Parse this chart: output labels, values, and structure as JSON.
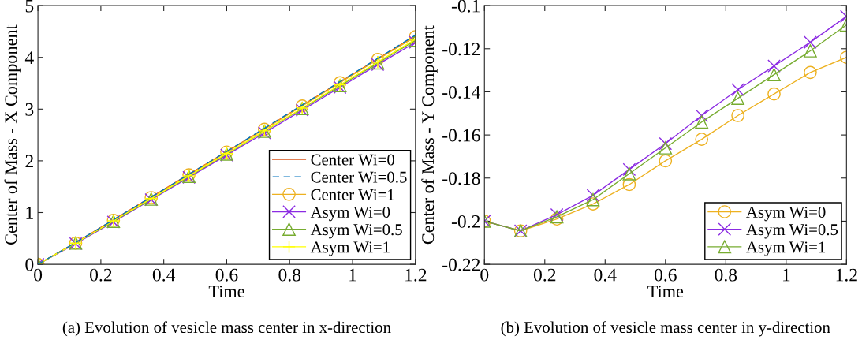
{
  "chart_data": [
    {
      "type": "line",
      "xlabel": "Time",
      "ylabel": "Center of Mass - X Component",
      "annotations": [
        "(a) Evolution of vesicle mass center in x-direction"
      ],
      "x": [
        0,
        0.12,
        0.24,
        0.36,
        0.48,
        0.6,
        0.72,
        0.84,
        0.96,
        1.08,
        1.2
      ],
      "xlim": [
        0,
        1.2
      ],
      "xticks": [
        0,
        0.2,
        0.4,
        0.6,
        0.8,
        1,
        1.2
      ],
      "ylim": [
        0,
        5
      ],
      "yticks": [
        0,
        1,
        2,
        3,
        4,
        5
      ],
      "grid": false,
      "legend": "bottom right",
      "series": [
        {
          "name": "Center Wi=0",
          "color": "#d95319",
          "marker": "none",
          "line_style": "solid",
          "values": [
            0,
            0.42,
            0.86,
            1.3,
            1.74,
            2.18,
            2.62,
            3.07,
            3.52,
            3.97,
            4.42
          ]
        },
        {
          "name": "Center Wi=0.5",
          "color": "#0072bd",
          "marker": "none",
          "line_style": "dashed",
          "values": [
            0,
            0.42,
            0.86,
            1.3,
            1.74,
            2.18,
            2.63,
            3.08,
            3.53,
            3.98,
            4.43
          ]
        },
        {
          "name": "Center Wi=1",
          "color": "#edb120",
          "marker": "circle",
          "line_style": "solid",
          "values": [
            0,
            0.41,
            0.85,
            1.29,
            1.73,
            2.17,
            2.61,
            3.06,
            3.51,
            3.96,
            4.4
          ]
        },
        {
          "name": "Asym Wi=0",
          "color": "#8b2be2",
          "marker": "cross",
          "line_style": "solid",
          "values": [
            0,
            0.4,
            0.82,
            1.25,
            1.68,
            2.11,
            2.54,
            2.98,
            3.42,
            3.86,
            4.29
          ]
        },
        {
          "name": "Asym Wi=0.5",
          "color": "#77ac30",
          "marker": "triangle",
          "line_style": "solid",
          "values": [
            0,
            0.41,
            0.83,
            1.26,
            1.7,
            2.13,
            2.57,
            3.01,
            3.45,
            3.89,
            4.33
          ]
        },
        {
          "name": "Asym Wi=1",
          "color": "#ffff00",
          "marker": "plus",
          "line_style": "solid",
          "values": [
            0,
            0.41,
            0.84,
            1.27,
            1.71,
            2.14,
            2.58,
            3.02,
            3.47,
            3.91,
            4.35
          ]
        }
      ]
    },
    {
      "type": "line",
      "xlabel": "Time",
      "ylabel": "Center of Mass - Y Component",
      "annotations": [
        "(b) Evolution of vesicle mass center in y-direction"
      ],
      "x": [
        0,
        0.12,
        0.24,
        0.36,
        0.48,
        0.6,
        0.72,
        0.84,
        0.96,
        1.08,
        1.2
      ],
      "xlim": [
        0,
        1.2
      ],
      "xticks": [
        0,
        0.2,
        0.4,
        0.6,
        0.8,
        1,
        1.2
      ],
      "ylim": [
        -0.22,
        -0.1
      ],
      "yticks": [
        -0.22,
        -0.2,
        -0.18,
        -0.16,
        -0.14,
        -0.12,
        -0.1
      ],
      "grid": false,
      "legend": "bottom right",
      "series": [
        {
          "name": "Asym Wi=0",
          "color": "#edb120",
          "marker": "circle",
          "line_style": "solid",
          "values": [
            -0.2,
            -0.2045,
            -0.199,
            -0.192,
            -0.183,
            -0.172,
            -0.162,
            -0.151,
            -0.141,
            -0.131,
            -0.124
          ]
        },
        {
          "name": "Asym Wi=0.5",
          "color": "#8b2be2",
          "marker": "cross",
          "line_style": "solid",
          "values": [
            -0.2,
            -0.2045,
            -0.197,
            -0.188,
            -0.176,
            -0.164,
            -0.151,
            -0.139,
            -0.128,
            -0.117,
            -0.105
          ]
        },
        {
          "name": "Asym Wi=1",
          "color": "#77ac30",
          "marker": "triangle",
          "line_style": "solid",
          "values": [
            -0.2,
            -0.2045,
            -0.198,
            -0.19,
            -0.178,
            -0.166,
            -0.154,
            -0.143,
            -0.132,
            -0.121,
            -0.109
          ]
        }
      ]
    }
  ]
}
